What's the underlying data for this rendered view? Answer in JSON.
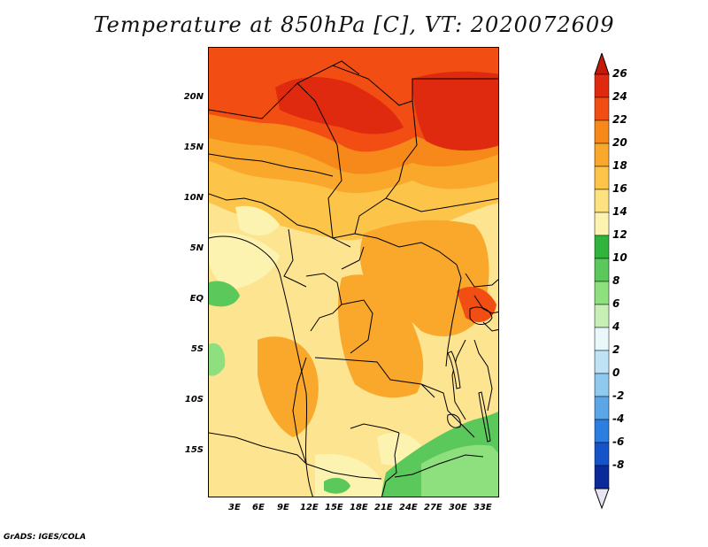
{
  "title": "Temperature at 850hPa [C], VT: 2020072609",
  "footer": "GrADS: IGES/COLA",
  "map": {
    "region": "Central Africa",
    "lat_labels": [
      "20N",
      "15N",
      "10N",
      "5N",
      "EQ",
      "5S",
      "10S",
      "15S"
    ],
    "lon_labels": [
      "3E",
      "6E",
      "9E",
      "12E",
      "15E",
      "18E",
      "21E",
      "24E",
      "27E",
      "30E",
      "33E"
    ]
  },
  "colorbar": {
    "levels": [
      "26",
      "24",
      "22",
      "20",
      "18",
      "16",
      "14",
      "12",
      "10",
      "8",
      "6",
      "4",
      "2",
      "0",
      "-2",
      "-4",
      "-6",
      "-8"
    ],
    "colors": [
      "#c31a0a",
      "#e02a10",
      "#f24e13",
      "#f7891a",
      "#f9a82c",
      "#fcc449",
      "#fde27f",
      "#fdf3b0",
      "#30b43d",
      "#5ac85a",
      "#8ee07f",
      "#c8f0b6",
      "#e8f8fa",
      "#bfe2f4",
      "#8fc9ee",
      "#5aa6e6",
      "#2c7ee0",
      "#1554c8",
      "#0a2a9a",
      "#0a1470"
    ]
  }
}
